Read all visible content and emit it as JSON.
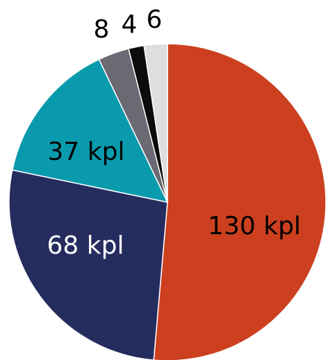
{
  "chart_data": {
    "type": "pie",
    "start_angle_deg": 0,
    "direction": "clockwise",
    "slices": [
      {
        "label": "130 kpl",
        "value": 130,
        "color": "#cc4020",
        "label_color": "#000000"
      },
      {
        "label": "68 kpl",
        "value": 68,
        "color": "#252c5e",
        "label_color": "#ffffff"
      },
      {
        "label": "37 kpl",
        "value": 37,
        "color": "#0a9aad",
        "label_color": "#000000"
      },
      {
        "label": "8",
        "value": 8,
        "color": "#6b6a72",
        "label_color": "#000000"
      },
      {
        "label": "4",
        "value": 4,
        "color": "#0c0c0c",
        "label_color": "#000000"
      },
      {
        "label": "6",
        "value": 6,
        "color": "#dedede",
        "label_color": "#000000"
      }
    ]
  }
}
